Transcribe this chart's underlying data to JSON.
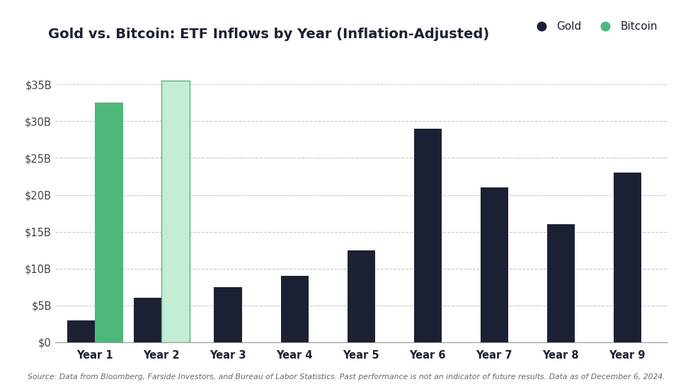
{
  "title": "Gold vs. Bitcoin: ETF Inflows by Year (Inflation-Adjusted)",
  "legend_gold": "Gold",
  "legend_bitcoin": "Bitcoin",
  "categories": [
    "Year 1",
    "Year 2",
    "Year 3",
    "Year 4",
    "Year 5",
    "Year 6",
    "Year 7",
    "Year 8",
    "Year 9"
  ],
  "gold_values": [
    3.0,
    6.0,
    7.5,
    9.0,
    12.5,
    29.0,
    21.0,
    16.0,
    23.0
  ],
  "bitcoin_values": [
    32.5,
    35.5,
    0,
    0,
    0,
    0,
    0,
    0,
    0
  ],
  "bitcoin_projected": [
    false,
    true,
    false,
    false,
    false,
    false,
    false,
    false,
    false
  ],
  "gold_color": "#1c2033",
  "bitcoin_solid_color": "#4db87a",
  "bitcoin_light_color": "#c5ecd5",
  "ylim": [
    0,
    38
  ],
  "yticks": [
    0,
    5,
    10,
    15,
    20,
    25,
    30,
    35
  ],
  "ytick_labels": [
    "$0",
    "$5B",
    "$10B",
    "$15B",
    "$20B",
    "$25B",
    "$30B",
    "$35B"
  ],
  "source_text": "Source: Data from Bloomberg, Farside Investors, and Bureau of Labor Statistics. Past performance is not an indicator of future results. Data as of December 6, 2024.",
  "background_color": "#ffffff",
  "title_fontsize": 14,
  "tick_fontsize": 10.5,
  "bar_width": 0.42,
  "grid_color": "#bbbbbb"
}
